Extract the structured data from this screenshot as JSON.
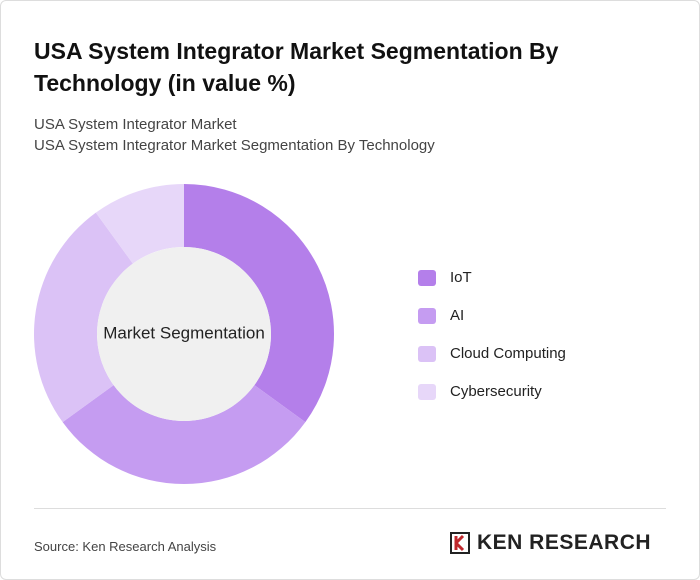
{
  "chart_data": {
    "type": "donut",
    "title": "USA System Integrator Market Segmentation By Technology (in value %)",
    "subtitle_lines": [
      "USA System Integrator Market",
      "USA System Integrator Market Segmentation By Technology"
    ],
    "center_label": "Market Segmentation",
    "categories": [
      "IoT",
      "AI",
      "Cloud Computing",
      "Cybersecurity"
    ],
    "values": [
      35,
      30,
      25,
      10
    ],
    "colors": [
      "#b47fea",
      "#c59cf1",
      "#dbc2f6",
      "#e7d7f9"
    ],
    "legend": "right"
  },
  "footer": {
    "source": "Source: Ken Research Analysis",
    "brand": "KEN RESEARCH"
  }
}
